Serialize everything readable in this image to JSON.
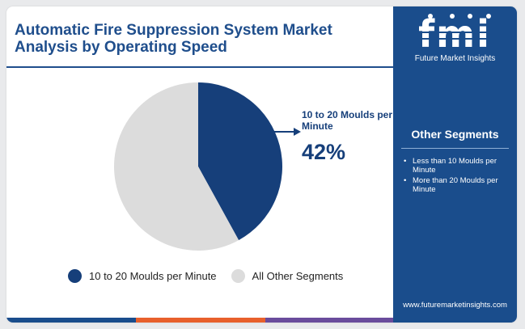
{
  "header": {
    "title": "Automatic Fire Suppression System Market Analysis by Operating Speed"
  },
  "chart_data": {
    "type": "pie",
    "slices": [
      {
        "label": "10 to 20 Moulds per Minute",
        "value": 42,
        "color": "#163f7a"
      },
      {
        "label": "All Other Segments",
        "value": 58,
        "color": "#dcdcdc"
      }
    ],
    "start_angle_deg": 0,
    "callout": {
      "label": "10 to 20 Moulds per Minute",
      "value": "42%"
    },
    "legend": [
      {
        "label": "10 to 20 Moulds per Minute",
        "color": "#163f7a"
      },
      {
        "label": "All Other Segments",
        "color": "#dcdcdc"
      }
    ],
    "legend_position": "bottom"
  },
  "sidebar": {
    "logo_text": "fmi",
    "logo_caption": "Future Market Insights",
    "heading": "Other Segments",
    "items": [
      "Less than 10 Moulds per Minute",
      "More than 20 Moulds per Minute"
    ],
    "website": "www.futuremarketinsights.com"
  },
  "colors": {
    "brand_blue": "#1a4d8c",
    "title_blue": "#1f4e8c",
    "accent_bar": [
      "#1a4d8c",
      "#e8602c",
      "#6a4c9c",
      "#1a4d8c"
    ]
  }
}
